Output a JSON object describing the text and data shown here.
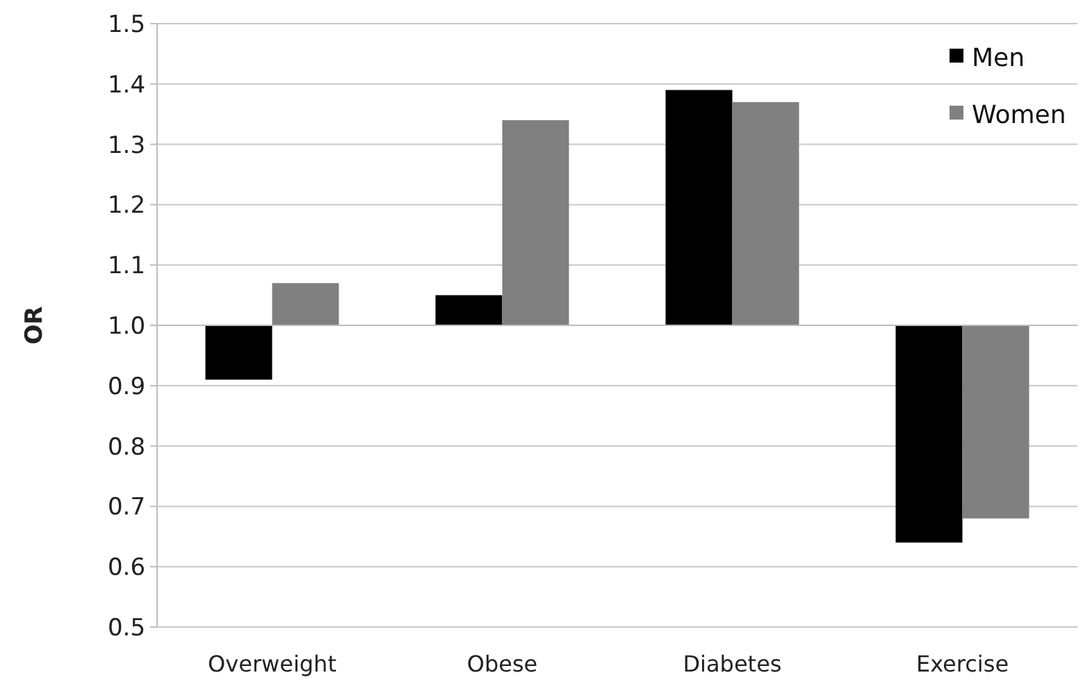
{
  "chart_data": {
    "type": "bar",
    "ylabel": "OR",
    "categories": [
      "Overweight",
      "Obese",
      "Diabetes",
      "Exercise"
    ],
    "ref_lines": [
      {
        "axis": "y",
        "value": 1,
        "color": "#bdbdbd"
      }
    ],
    "series": [
      {
        "name": "Men",
        "color": "#000000",
        "base": [
          1,
          1,
          1,
          1
        ],
        "values": [
          -0.09,
          0.05,
          0.39,
          -0.36
        ]
      },
      {
        "name": "Women",
        "color": "#808080",
        "base": [
          1,
          1,
          1,
          1
        ],
        "values": [
          0.07,
          0.34,
          0.37,
          -0.32
        ]
      }
    ],
    "ylim": [
      0.5,
      1.5
    ],
    "yticks": [
      {
        "value": 0.5,
        "label": "0.5"
      },
      {
        "value": 0.6,
        "label": "0.6"
      },
      {
        "value": 0.7,
        "label": "0.7"
      },
      {
        "value": 0.8,
        "label": "0.8"
      },
      {
        "value": 0.9,
        "label": "0.9"
      },
      {
        "value": 1,
        "label": "1.0"
      },
      {
        "value": 1.1,
        "label": "1.1"
      },
      {
        "value": 1.2,
        "label": "1.2"
      },
      {
        "value": 1.3,
        "label": "1.3"
      },
      {
        "value": 1.4,
        "label": "1.4"
      },
      {
        "value": 1.5,
        "label": "1.5"
      }
    ],
    "grid": "y",
    "legend": "top right"
  }
}
